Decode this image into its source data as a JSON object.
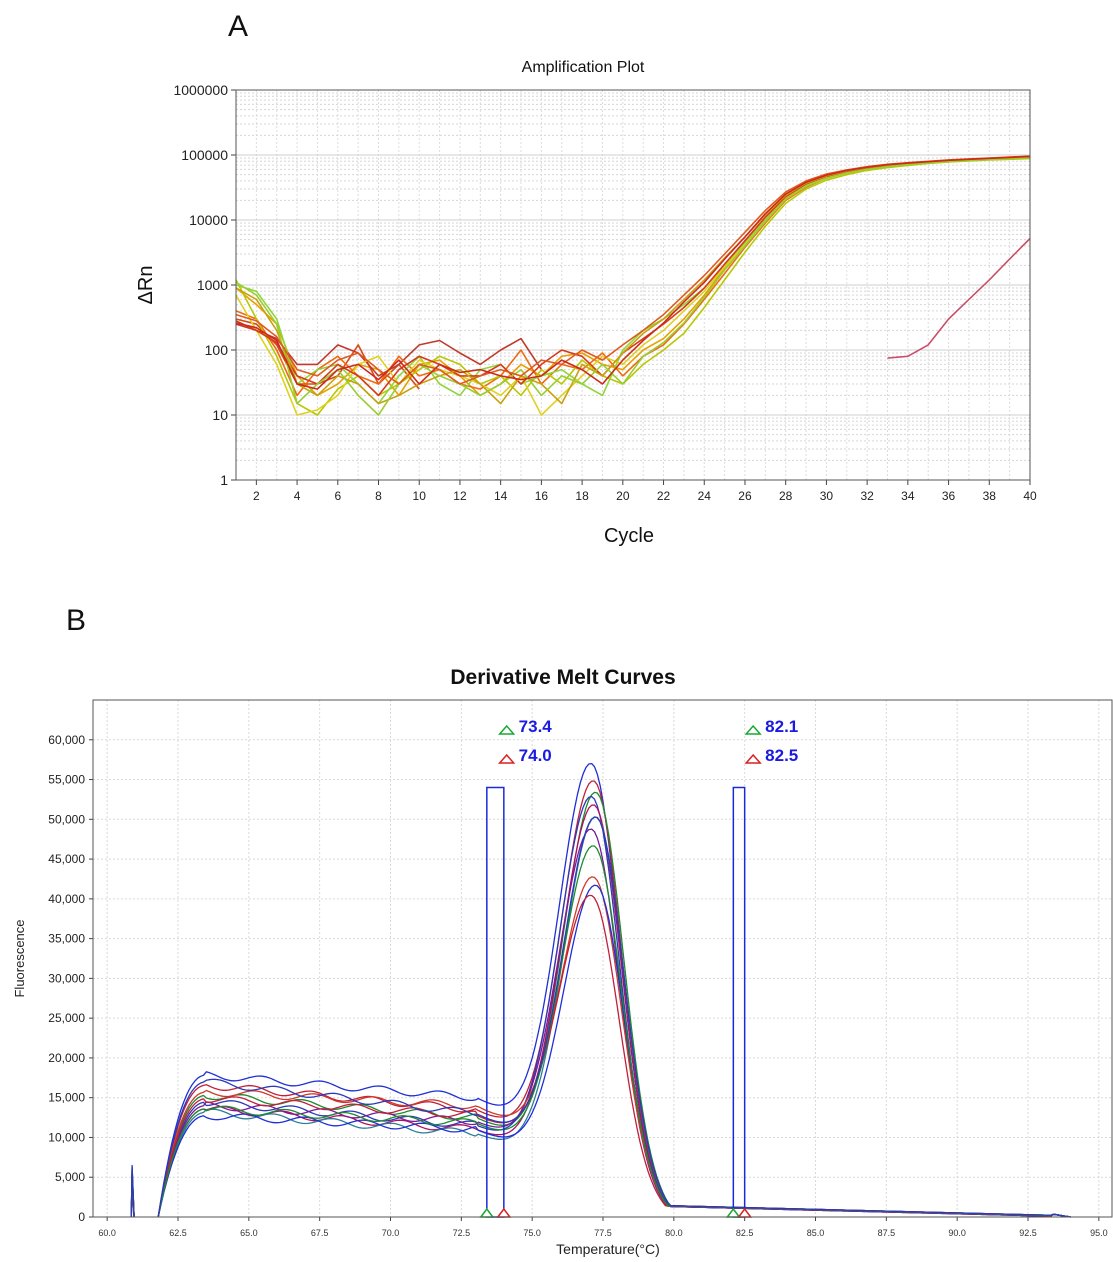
{
  "panels": {
    "a": {
      "letter": "A"
    },
    "b": {
      "letter": "B"
    }
  },
  "chart_data": [
    {
      "type": "line",
      "title": "Amplification Plot",
      "xlabel": "Cycle",
      "ylabel": "ΔRn",
      "yscale": "log",
      "xlim": [
        1,
        40
      ],
      "ylim": [
        1,
        1000000
      ],
      "x_ticks": [
        "2",
        "4",
        "6",
        "8",
        "10",
        "12",
        "14",
        "16",
        "18",
        "20",
        "22",
        "24",
        "26",
        "28",
        "30",
        "32",
        "34",
        "36",
        "38",
        "40"
      ],
      "y_ticks": [
        "1",
        "10",
        "100",
        "1000",
        "10000",
        "100000",
        "1000000"
      ],
      "grid": true,
      "legend": "none",
      "colors": [
        "#e8a000",
        "#d64a1a",
        "#c0392b",
        "#f06a10",
        "#b8c800",
        "#8fd63a",
        "#e0d020",
        "#d63a1a",
        "#c9a010",
        "#9acd32",
        "#e05a20",
        "#cc2a1a"
      ],
      "late_series_color": "#c8506a",
      "x": [
        1,
        2,
        3,
        4,
        5,
        6,
        7,
        8,
        9,
        10,
        11,
        12,
        13,
        14,
        15,
        16,
        17,
        18,
        19,
        20,
        21,
        22,
        23,
        24,
        25,
        26,
        27,
        28,
        29,
        30,
        31,
        32,
        33,
        34,
        35,
        36,
        37,
        38,
        39,
        40
      ],
      "series": [
        {
          "values": [
            900,
            500,
            250,
            40,
            20,
            30,
            60,
            50,
            20,
            60,
            70,
            40,
            20,
            30,
            60,
            40,
            80,
            90,
            60,
            50,
            100,
            150,
            300,
            700,
            1800,
            4500,
            10000,
            22000,
            35000,
            46000,
            55000,
            62000,
            68000,
            73000,
            77000,
            81000,
            84000,
            87000,
            90000,
            92000
          ]
        },
        {
          "values": [
            300,
            250,
            120,
            30,
            30,
            40,
            120,
            30,
            60,
            25,
            null,
            null,
            null,
            null,
            null,
            null,
            null,
            null,
            null,
            null,
            null,
            null,
            null,
            null,
            null,
            null,
            null,
            null,
            null,
            null,
            null,
            null,
            null,
            null,
            null,
            null,
            null,
            null,
            null,
            null
          ]
        },
        {
          "values": [
            250,
            200,
            150,
            60,
            60,
            120,
            90,
            40,
            60,
            120,
            140,
            90,
            60,
            100,
            150,
            50,
            null,
            null,
            null,
            null,
            null,
            null,
            null,
            null,
            null,
            null,
            null,
            null,
            null,
            null,
            null,
            null,
            null,
            null,
            null,
            null,
            null,
            null,
            null,
            null
          ]
        },
        {
          "values": [
            400,
            300,
            100,
            20,
            50,
            80,
            40,
            30,
            80,
            40,
            50,
            30,
            25,
            40,
            100,
            30,
            60,
            50,
            90,
            40,
            80,
            120,
            250,
            600,
            1500,
            3800,
            9000,
            20000,
            32000,
            44000,
            53000,
            60000,
            66000,
            71000,
            75000,
            79000,
            82000,
            85000,
            88000,
            90000
          ]
        },
        {
          "values": [
            1200,
            300,
            80,
            15,
            10,
            25,
            40,
            20,
            30,
            50,
            80,
            60,
            30,
            40,
            20,
            50,
            30,
            70,
            40,
            30,
            60,
            100,
            180,
            450,
            1200,
            3200,
            8000,
            18000,
            30000,
            41000,
            50000,
            58000,
            64000,
            69000,
            74000,
            78000,
            81000,
            84000,
            86000,
            88000
          ]
        },
        {
          "values": [
            1000,
            800,
            300,
            30,
            50,
            60,
            30,
            15,
            40,
            80,
            30,
            20,
            50,
            60,
            30,
            40,
            50,
            30,
            20,
            100,
            200,
            300,
            500,
            900,
            2000,
            4500,
            10000,
            21000,
            34000,
            45000,
            54000,
            61000,
            67000,
            72000,
            76000,
            80000,
            83000,
            86000,
            89000,
            91000
          ]
        },
        {
          "values": [
            700,
            200,
            60,
            10,
            12,
            20,
            60,
            80,
            30,
            70,
            50,
            40,
            30,
            20,
            40,
            10,
            20,
            40,
            80,
            60,
            120,
            200,
            400,
            800,
            1900,
            4200,
            9500,
            21000,
            33000,
            45000,
            54000,
            61000,
            67000,
            72000,
            76000,
            80000,
            83000,
            86000,
            89000,
            91000
          ]
        },
        {
          "values": [
            280,
            200,
            130,
            40,
            30,
            60,
            40,
            20,
            50,
            80,
            60,
            40,
            40,
            60,
            30,
            60,
            100,
            80,
            40,
            90,
            150,
            250,
            450,
            900,
            2100,
            4800,
            11000,
            23000,
            36000,
            47000,
            56000,
            63000,
            69000,
            74000,
            78000,
            82000,
            85000,
            88000,
            91000,
            94000
          ]
        },
        {
          "values": [
            900,
            600,
            200,
            30,
            20,
            40,
            30,
            15,
            20,
            30,
            40,
            50,
            30,
            15,
            40,
            30,
            15,
            60,
            40,
            90,
            180,
            300,
            600,
            1200,
            2600,
            5500,
            12000,
            24000,
            37000,
            48000,
            57000,
            64000,
            70000,
            75000,
            79000,
            83000,
            86000,
            89000,
            92000,
            95000
          ]
        },
        {
          "values": [
            1100,
            700,
            250,
            15,
            30,
            50,
            20,
            10,
            30,
            60,
            40,
            30,
            20,
            30,
            50,
            20,
            40,
            30,
            60,
            30,
            80,
            130,
            260,
            650,
            1700,
            4000,
            9500,
            21000,
            33000,
            44000,
            53000,
            60000,
            66000,
            71000,
            75000,
            79000,
            82000,
            85000,
            88000,
            90000
          ]
        },
        {
          "values": [
            350,
            280,
            160,
            50,
            40,
            70,
            90,
            50,
            30,
            60,
            50,
            30,
            40,
            50,
            40,
            70,
            60,
            100,
            70,
            120,
            200,
            350,
            700,
            1400,
            3000,
            6500,
            14000,
            27000,
            40000,
            51000,
            59000,
            66000,
            72000,
            76000,
            80000,
            84000,
            87000,
            90000,
            93000,
            96000
          ]
        },
        {
          "values": [
            260,
            220,
            140,
            30,
            25,
            50,
            60,
            35,
            70,
            30,
            60,
            45,
            50,
            40,
            35,
            40,
            70,
            50,
            30,
            70,
            140,
            260,
            550,
            1100,
            2500,
            5500,
            12500,
            25000,
            38000,
            49000,
            58000,
            65000,
            71000,
            75000,
            79000,
            83000,
            86000,
            89000,
            92000,
            95000
          ]
        },
        {
          "values": [
            null,
            null,
            null,
            null,
            null,
            null,
            null,
            null,
            null,
            null,
            null,
            null,
            null,
            null,
            null,
            null,
            null,
            null,
            null,
            null,
            null,
            null,
            null,
            null,
            null,
            null,
            null,
            null,
            null,
            null,
            null,
            null,
            75,
            80,
            120,
            300,
            600,
            1200,
            2500,
            5200
          ]
        }
      ]
    },
    {
      "type": "line",
      "title": "Derivative Melt Curves",
      "xlabel": "Temperature(°C)",
      "ylabel": "Fluorescence",
      "xlim": [
        59.5,
        95.5
      ],
      "ylim": [
        0,
        65000
      ],
      "x_ticks": [
        "60.0",
        "62.5",
        "65.0",
        "67.5",
        "70.0",
        "72.5",
        "75.0",
        "77.5",
        "80.0",
        "82.5",
        "85.0",
        "87.5",
        "90.0",
        "92.5",
        "95.0"
      ],
      "y_ticks": [
        "0",
        "5,000",
        "10,000",
        "15,000",
        "20,000",
        "25,000",
        "30,000",
        "35,000",
        "40,000",
        "45,000",
        "50,000",
        "55,000",
        "60,000"
      ],
      "grid": true,
      "legend": "none",
      "colors": [
        "#1f2fd6",
        "#c0203a",
        "#1e8a2e",
        "#2a3ab8",
        "#b01060",
        "#2e7d9a",
        "#7a1a9a",
        "#d03a2a"
      ],
      "peak_temperature": 77.2,
      "peak_heights": [
        59800,
        57500,
        56000,
        55000,
        54000,
        52500,
        51000,
        45500,
        44000,
        42800,
        49000,
        53000
      ],
      "shoulder_heights": [
        21000,
        19500,
        18000,
        17000,
        16000,
        15500,
        16500,
        18500,
        15000,
        17500,
        16000,
        20000
      ],
      "trough_heights": [
        15000,
        13500,
        12500,
        11500,
        11000,
        10500,
        12000,
        14000,
        11000,
        12800,
        11800,
        13000
      ],
      "markers": [
        {
          "label": "73.4",
          "temperature": 73.4,
          "color": "#19a832"
        },
        {
          "label": "74.0",
          "temperature": 74.0,
          "color": "#d82020"
        },
        {
          "label": "82.1",
          "temperature": 82.1,
          "color": "#19a832"
        },
        {
          "label": "82.5",
          "temperature": 82.5,
          "color": "#d82020"
        }
      ],
      "marker_label_color": "#1a1ae0",
      "region_box_color": "#1a2ad8",
      "region_height": 54000
    }
  ]
}
